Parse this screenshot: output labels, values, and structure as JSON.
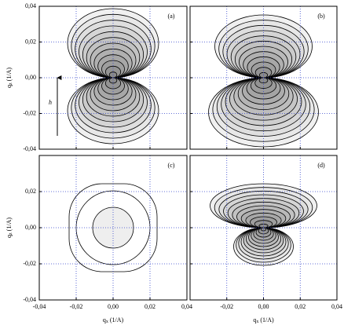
{
  "chart_data": [
    {
      "type": "contour",
      "panel_label": "(a)",
      "xlim": [
        -0.04,
        0.04
      ],
      "ylim": [
        -0.04,
        0.04
      ],
      "grid": true,
      "xticks": [
        -0.04,
        -0.02,
        0,
        0.02,
        0.04
      ],
      "yticks": [
        {
          "value": 0.04,
          "label": "0,04"
        },
        {
          "value": 0.02,
          "label": "0,02"
        },
        {
          "value": 0,
          "label": "0,00"
        },
        {
          "value": -0.02,
          "label": "-0,02"
        },
        {
          "value": -0.04,
          "label": "-0,04"
        }
      ],
      "ylabel": {
        "symbol": "q",
        "sub": "z",
        "unit": "(1/A)"
      },
      "annotation": "h"
    },
    {
      "type": "contour",
      "panel_label": "(b)",
      "xlim": [
        -0.04,
        0.04
      ],
      "ylim": [
        -0.04,
        0.04
      ],
      "grid": true,
      "xticks": [
        -0.04,
        -0.02,
        0,
        0.02,
        0.04
      ],
      "yticks": [
        0.04,
        0.02,
        0,
        -0.02,
        -0.04
      ]
    },
    {
      "type": "contour",
      "panel_label": "(c)",
      "xlim": [
        -0.04,
        0.04
      ],
      "ylim": [
        -0.04,
        0.04
      ],
      "grid": true,
      "xticks": [
        {
          "value": -0.04,
          "label": "-0,04"
        },
        {
          "value": -0.02,
          "label": "-0,02"
        },
        {
          "value": 0,
          "label": "0,00"
        },
        {
          "value": 0.02,
          "label": "0,02"
        },
        {
          "value": 0.04,
          "label": "0,04"
        }
      ],
      "yticks": [
        {
          "value": 0.02,
          "label": "0,02"
        },
        {
          "value": 0,
          "label": "0,00"
        },
        {
          "value": -0.02,
          "label": "-0,02"
        },
        {
          "value": -0.04,
          "label": "-0,04"
        }
      ],
      "xlabel": {
        "symbol": "q",
        "sub": "x",
        "unit": "(1/A)"
      },
      "ylabel": {
        "symbol": "q",
        "sub": "z",
        "unit": "(1/A)"
      }
    },
    {
      "type": "contour",
      "panel_label": "(d)",
      "xlim": [
        -0.04,
        0.04
      ],
      "ylim": [
        -0.04,
        0.04
      ],
      "grid": true,
      "xticks": [
        {
          "value": -0.02,
          "label": "-0,02"
        },
        {
          "value": 0,
          "label": "0,00"
        },
        {
          "value": 0.02,
          "label": "0,02"
        },
        {
          "value": 0.04,
          "label": "0,04"
        }
      ],
      "yticks": [
        0.04,
        0.02,
        0,
        -0.02,
        -0.04
      ],
      "xlabel": {
        "symbol": "q",
        "sub": "x",
        "unit": "(1/A)"
      }
    }
  ]
}
